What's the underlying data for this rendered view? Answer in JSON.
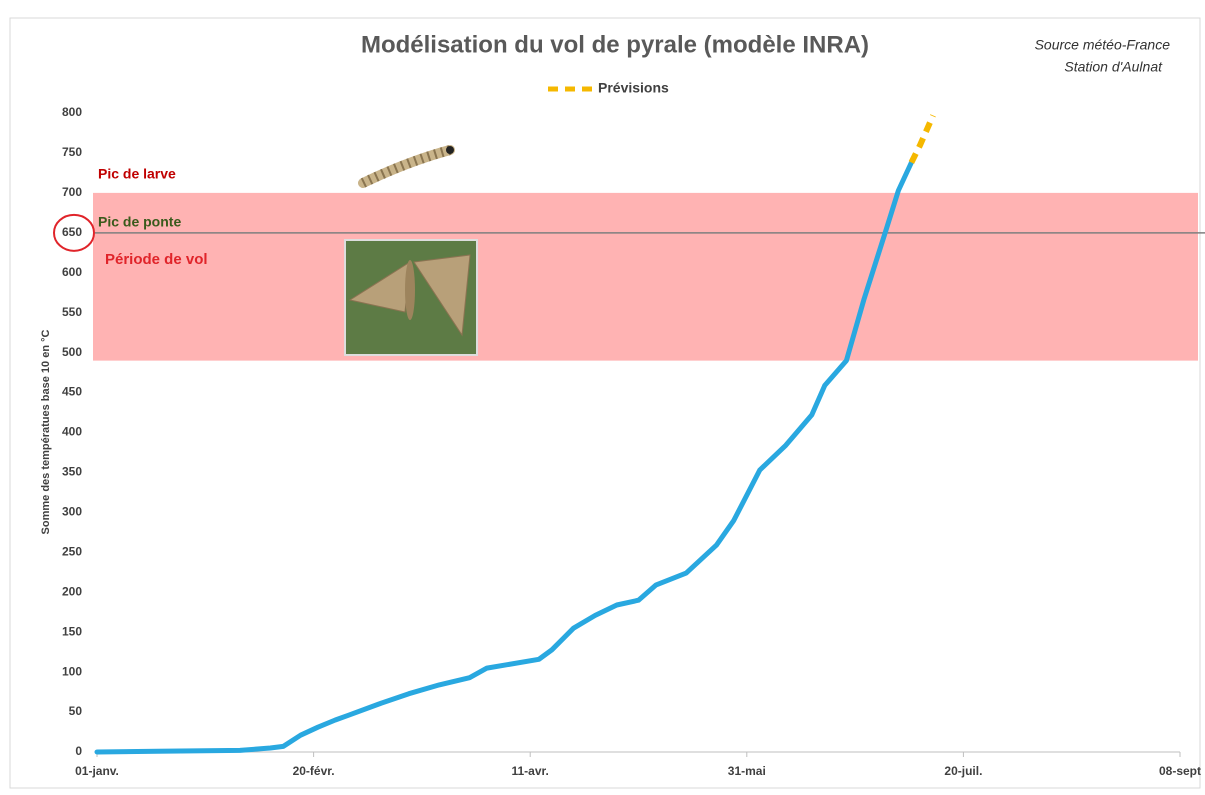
{
  "chart_data": {
    "type": "line",
    "title": "Modélisation du vol de pyrale (modèle INRA)",
    "source": [
      "Source météo-France",
      "Station d'Aulnat"
    ],
    "ylabel": "Somme des températues base 10 en °C",
    "xlim": [
      0,
      250
    ],
    "xticks": [
      {
        "value": 0,
        "label": "01-janv."
      },
      {
        "value": 50,
        "label": "20-févr."
      },
      {
        "value": 100,
        "label": "11-avr."
      },
      {
        "value": 150,
        "label": "31-mai"
      },
      {
        "value": 200,
        "label": "20-juil."
      },
      {
        "value": 250,
        "label": "08-sept"
      }
    ],
    "ylim": [
      0,
      800
    ],
    "yticks": [
      0,
      50,
      100,
      150,
      200,
      250,
      300,
      350,
      400,
      450,
      500,
      550,
      600,
      650,
      700,
      750,
      800
    ],
    "band": {
      "from": 490,
      "to": 700,
      "label": "Période de vol",
      "color": "#ffb3b3"
    },
    "hline": {
      "value": 650,
      "label": "Pic de ponte",
      "color": "#7f7f7f"
    },
    "annotations": [
      "Pic de larve"
    ],
    "series": [
      {
        "color": "#29a8e0",
        "dashed": false,
        "x": [
          0,
          14,
          33,
          40,
          43,
          47,
          51,
          55,
          58,
          65,
          72,
          79,
          86,
          90,
          102,
          105,
          110,
          115,
          120,
          125,
          129,
          136,
          143,
          147,
          153,
          159,
          165,
          168,
          173,
          177,
          182,
          185,
          188
        ],
        "values": [
          0,
          1,
          2,
          5,
          7,
          21,
          31,
          40,
          46,
          60,
          73,
          84,
          93,
          105,
          116,
          128,
          155,
          171,
          184,
          190,
          209,
          224,
          259,
          290,
          353,
          384,
          422,
          459,
          490,
          566,
          651,
          703,
          738
        ]
      },
      {
        "name": "Prévisions",
        "color": "#f5b800",
        "dashed": true,
        "x": [
          188,
          190,
          193
        ],
        "values": [
          738,
          760,
          797
        ]
      }
    ]
  }
}
